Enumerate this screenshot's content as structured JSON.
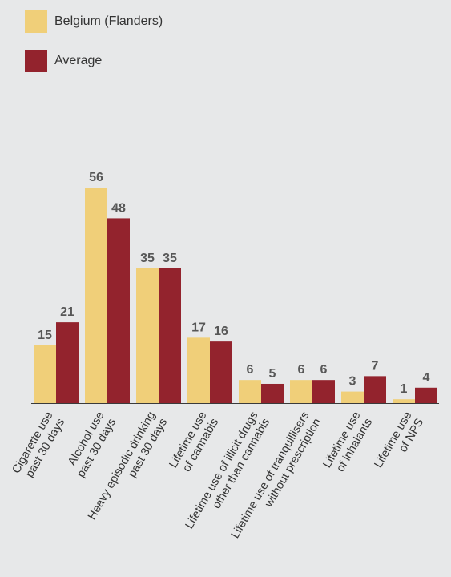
{
  "legend": {
    "items": [
      {
        "label": "Belgium (Flanders)",
        "color": "#f0cf79"
      },
      {
        "label": "Average",
        "color": "#93232d"
      }
    ]
  },
  "chart_data": {
    "type": "bar",
    "categories": [
      [
        "Cigarette use",
        "past 30 days"
      ],
      [
        "Alcohol use",
        "past 30 days"
      ],
      [
        "Heavy episodic drinking",
        "past 30 days"
      ],
      [
        "Lifetime use",
        "of cannabis"
      ],
      [
        "Lifetime use of illicit drugs",
        "other than cannabis"
      ],
      [
        "Lifetime use of tranquillisers",
        "without prescription"
      ],
      [
        "Lifetime use",
        "of inhalants"
      ],
      [
        "Lifetime use",
        "of NPS"
      ]
    ],
    "series": [
      {
        "name": "Belgium (Flanders)",
        "color": "#f0cf79",
        "values": [
          15,
          56,
          35,
          17,
          6,
          6,
          3,
          1
        ]
      },
      {
        "name": "Average",
        "color": "#93232d",
        "values": [
          21,
          48,
          35,
          16,
          5,
          6,
          7,
          4
        ]
      }
    ],
    "xlabel": "",
    "ylabel": "",
    "ylim": [
      0,
      56
    ],
    "grid": false,
    "legend_position": "top-left"
  }
}
